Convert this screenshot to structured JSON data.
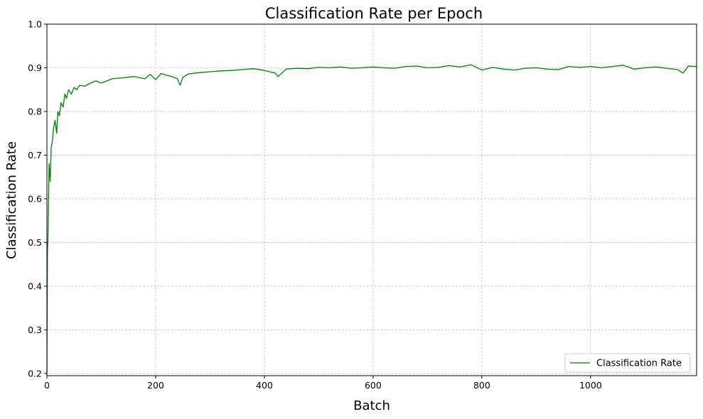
{
  "chart_data": {
    "type": "line",
    "title": "Classification Rate per Epoch",
    "xlabel": "Batch",
    "ylabel": "Classification Rate",
    "xlim": [
      0,
      1195
    ],
    "ylim": [
      0.195,
      1.0
    ],
    "xticks": [
      0,
      200,
      400,
      600,
      800,
      1000
    ],
    "xtick_labels": [
      "0",
      "200",
      "400",
      "600",
      "800",
      "1000"
    ],
    "yticks": [
      0.2,
      0.3,
      0.4,
      0.5,
      0.6,
      0.7,
      0.8,
      0.9,
      1.0
    ],
    "ytick_labels": [
      "0.2",
      "0.3",
      "0.4",
      "0.5",
      "0.6",
      "0.7",
      "0.8",
      "0.9",
      "1.0"
    ],
    "grid": true,
    "legend_position": "bottom-right",
    "colors": {
      "series": "#008000",
      "grid": "#b0b0b0"
    },
    "series": [
      {
        "name": "Classification Rate",
        "x": [
          0,
          1,
          2,
          3,
          4,
          6,
          8,
          10,
          12,
          15,
          18,
          20,
          23,
          26,
          30,
          33,
          36,
          40,
          45,
          50,
          55,
          60,
          70,
          80,
          90,
          100,
          120,
          140,
          160,
          180,
          190,
          200,
          210,
          220,
          230,
          240,
          245,
          250,
          260,
          280,
          300,
          320,
          340,
          360,
          380,
          400,
          420,
          425,
          440,
          460,
          480,
          500,
          520,
          540,
          560,
          580,
          600,
          620,
          640,
          660,
          680,
          700,
          720,
          740,
          760,
          780,
          800,
          820,
          840,
          860,
          880,
          900,
          920,
          940,
          960,
          980,
          1000,
          1020,
          1040,
          1060,
          1080,
          1100,
          1120,
          1140,
          1160,
          1170,
          1180,
          1195
        ],
        "y": [
          0.2,
          0.48,
          0.51,
          0.6,
          0.68,
          0.64,
          0.72,
          0.73,
          0.76,
          0.78,
          0.75,
          0.8,
          0.79,
          0.82,
          0.81,
          0.84,
          0.83,
          0.85,
          0.84,
          0.855,
          0.85,
          0.86,
          0.858,
          0.865,
          0.87,
          0.865,
          0.875,
          0.877,
          0.88,
          0.875,
          0.885,
          0.873,
          0.887,
          0.883,
          0.88,
          0.875,
          0.86,
          0.878,
          0.886,
          0.889,
          0.891,
          0.893,
          0.894,
          0.896,
          0.898,
          0.894,
          0.888,
          0.88,
          0.897,
          0.899,
          0.898,
          0.901,
          0.9,
          0.902,
          0.899,
          0.9,
          0.902,
          0.9,
          0.899,
          0.903,
          0.904,
          0.9,
          0.901,
          0.905,
          0.902,
          0.907,
          0.895,
          0.901,
          0.897,
          0.895,
          0.899,
          0.9,
          0.897,
          0.896,
          0.903,
          0.901,
          0.903,
          0.9,
          0.903,
          0.906,
          0.897,
          0.9,
          0.902,
          0.899,
          0.896,
          0.888,
          0.904,
          0.903
        ]
      }
    ]
  }
}
